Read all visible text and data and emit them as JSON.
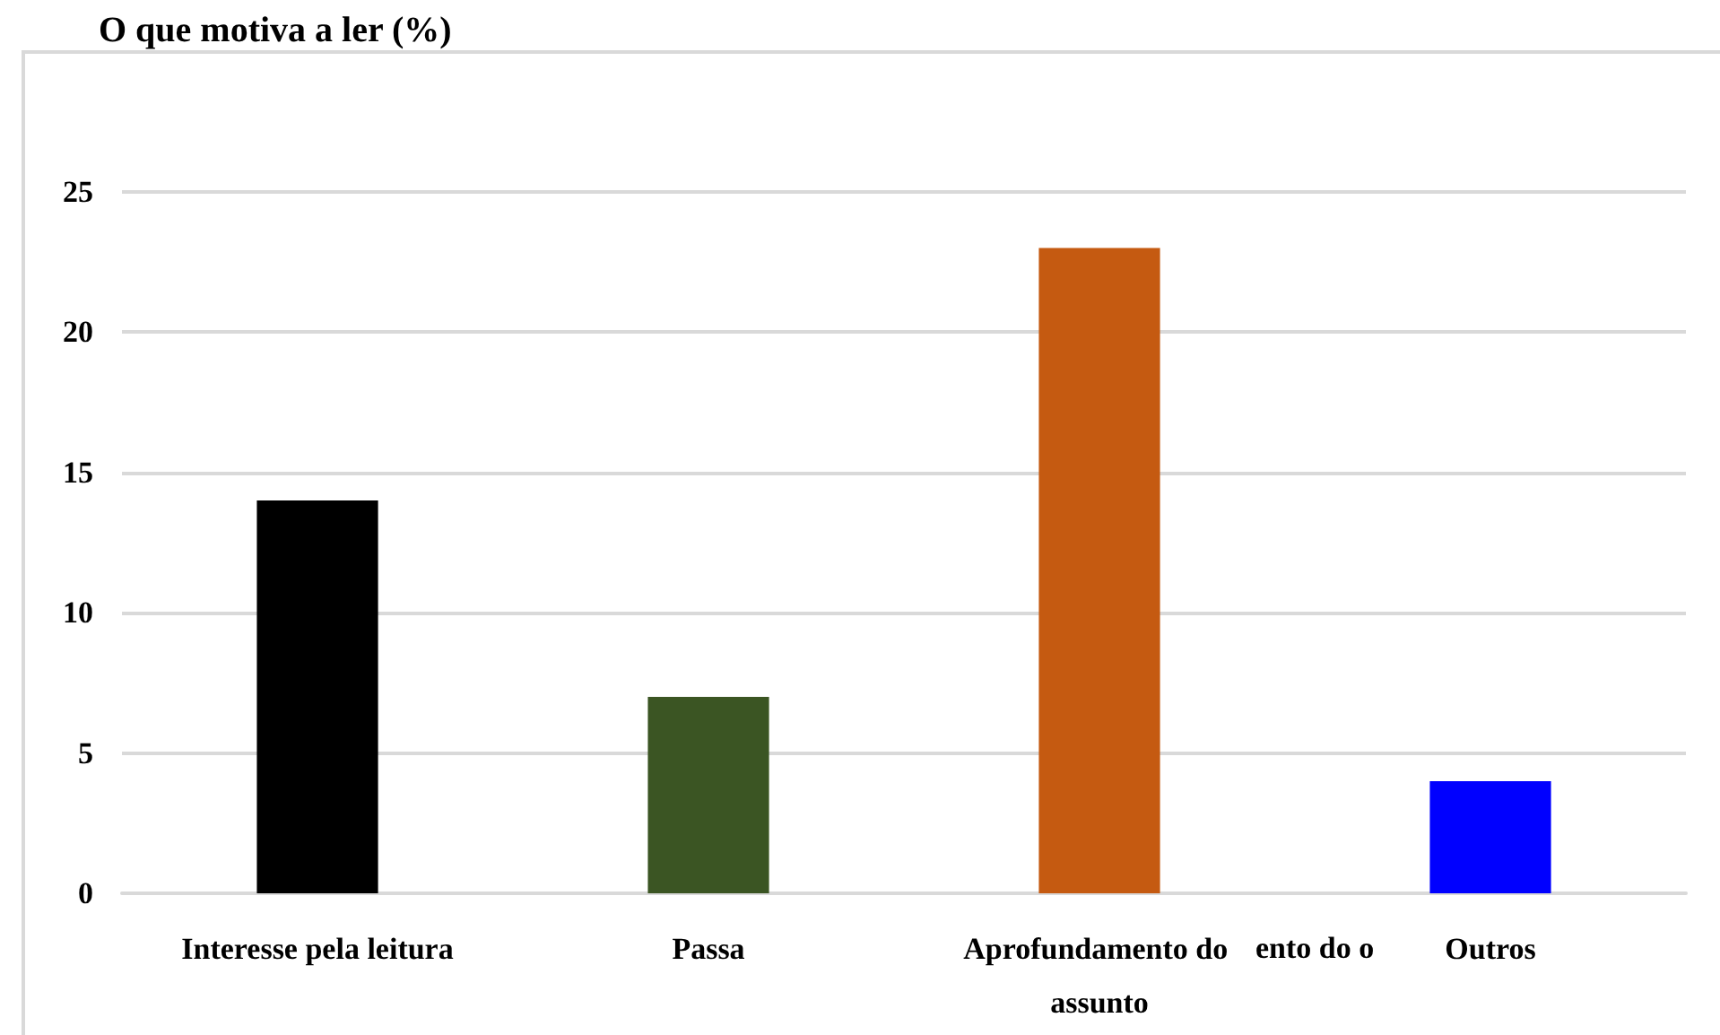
{
  "chart_data": {
    "type": "bar",
    "title": "O que motiva a ler (%)",
    "categories": [
      "Interesse pela leitura",
      "Passa",
      "Aprofundamento do assunto",
      "Outros"
    ],
    "values": [
      14,
      7,
      23,
      4
    ],
    "colors": [
      "#000000",
      "#3b5523",
      "#c55a11",
      "#0000ff"
    ],
    "ylim": [
      0,
      25
    ],
    "yticks": [
      0,
      5,
      10,
      15,
      20,
      25
    ],
    "grid": "y",
    "annotations": [
      "ento do o"
    ]
  }
}
